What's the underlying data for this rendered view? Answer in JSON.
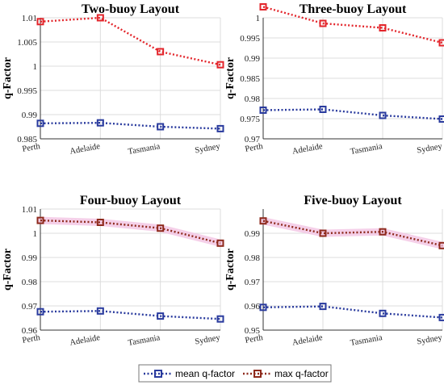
{
  "chart_data": [
    {
      "type": "line",
      "title": "Two-buoy Layout",
      "ylabel": "q-Factor",
      "categories": [
        "Perth",
        "Adelaide",
        "Tasmania",
        "Sydney"
      ],
      "ylim": [
        0.985,
        1.01
      ],
      "yticks": [
        "0.985",
        "0.99",
        "0.995",
        "1",
        "1.005",
        "1.01"
      ],
      "series": [
        {
          "name": "mean q-factor",
          "values": [
            0.9882,
            0.9883,
            0.9875,
            0.9871
          ]
        },
        {
          "name": "max q-factor",
          "values": [
            1.0092,
            1.01,
            1.003,
            1.0003
          ]
        }
      ]
    },
    {
      "type": "line",
      "title": "Three-buoy Layout",
      "ylabel": "q-Factor",
      "categories": [
        "Perth",
        "Adelaide",
        "Tasmania",
        "Sydney"
      ],
      "ylim": [
        0.97,
        1.0
      ],
      "yticks": [
        "0.97",
        "0.975",
        "0.98",
        "0.985",
        "0.99",
        "0.995",
        "1"
      ],
      "series": [
        {
          "name": "mean q-factor",
          "values": [
            0.9771,
            0.9773,
            0.9758,
            0.9749
          ]
        },
        {
          "name": "max q-factor",
          "values": [
            1.0027,
            0.9986,
            0.9975,
            0.9938
          ]
        }
      ]
    },
    {
      "type": "line",
      "title": "Four-buoy Layout",
      "ylabel": "q-Factor",
      "categories": [
        "Perth",
        "Adelaide",
        "Tasmania",
        "Sydney"
      ],
      "ylim": [
        0.96,
        1.01
      ],
      "yticks": [
        "0.96",
        "0.97",
        "0.98",
        "0.99",
        "1",
        "1.01"
      ],
      "series": [
        {
          "name": "mean q-factor",
          "values": [
            0.9676,
            0.9679,
            0.9658,
            0.9646
          ]
        },
        {
          "name": "max q-factor",
          "values": [
            1.0053,
            1.0045,
            1.0021,
            0.9959
          ]
        }
      ]
    },
    {
      "type": "line",
      "title": "Five-buoy Layout",
      "ylabel": "q-Factor",
      "categories": [
        "Perth",
        "Adelaide",
        "Tasmania",
        "Sydney"
      ],
      "ylim": [
        0.95,
        1.0
      ],
      "yticks": [
        "0.95",
        "0.96",
        "0.97",
        "0.98",
        "0.99"
      ],
      "series": [
        {
          "name": "mean q-factor",
          "values": [
            0.9594,
            0.9598,
            0.9569,
            0.9552
          ]
        },
        {
          "name": "max q-factor",
          "values": [
            0.9951,
            0.99,
            0.9906,
            0.9849
          ]
        }
      ]
    }
  ],
  "legend": {
    "placement": "bottom-center",
    "items": [
      "mean q-factor",
      "max q-factor"
    ]
  },
  "colors": {
    "mean": "#2a3b9e",
    "max_top": "#e3252b",
    "max_bottom": "#8e2a1c",
    "max_glow": "#f3c4e4",
    "grid": "#dcdcdc",
    "axis": "#333333"
  }
}
